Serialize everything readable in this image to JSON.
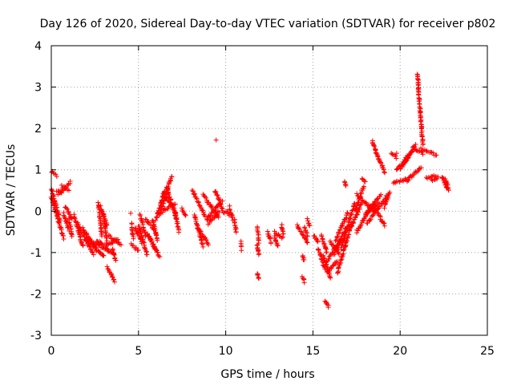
{
  "chart_data": {
    "type": "scatter",
    "title": "Day 126 of 2020, Sidereal Day-to-day VTEC variation (SDTVAR) for receiver p802",
    "xlabel": "GPS time / hours",
    "ylabel": "SDTVAR / TECUs",
    "xlim": [
      0,
      25
    ],
    "ylim": [
      -3,
      4
    ],
    "xticks": [
      "0",
      "5",
      "10",
      "15",
      "20",
      "25"
    ],
    "yticks": [
      "-3",
      "-2",
      "-1",
      "0",
      "1",
      "2",
      "3",
      "4"
    ],
    "grid": true,
    "marker": "+",
    "series_color": "#ff0000",
    "segments": [
      [
        0.0,
        0.95,
        0.3,
        0.85
      ],
      [
        0.0,
        0.55,
        0.5,
        -0.2
      ],
      [
        0.0,
        0.35,
        0.7,
        -0.65
      ],
      [
        0.3,
        0.5,
        0.6,
        0.45
      ],
      [
        0.4,
        0.4,
        1.1,
        0.7
      ],
      [
        0.6,
        0.6,
        1.0,
        0.5
      ],
      [
        0.7,
        -0.05,
        1.0,
        -0.45
      ],
      [
        0.8,
        0.1,
        1.2,
        -0.2
      ],
      [
        1.0,
        -0.2,
        1.2,
        -0.6
      ],
      [
        1.3,
        -0.1,
        1.8,
        -0.85
      ],
      [
        1.5,
        -0.3,
        2.1,
        -0.8
      ],
      [
        1.8,
        -0.4,
        2.6,
        -0.95
      ],
      [
        2.0,
        -0.65,
        2.4,
        -1.05
      ],
      [
        2.2,
        -0.7,
        3.0,
        -1.1
      ],
      [
        2.4,
        -0.75,
        3.3,
        -0.95
      ],
      [
        2.6,
        -0.7,
        3.6,
        -1.05
      ],
      [
        2.7,
        0.2,
        2.9,
        -0.6
      ],
      [
        2.8,
        0.1,
        3.2,
        -0.35
      ],
      [
        3.0,
        -0.1,
        3.2,
        -0.8
      ],
      [
        3.2,
        -0.8,
        3.8,
        -0.7
      ],
      [
        3.3,
        -0.6,
        4.0,
        -0.8
      ],
      [
        3.2,
        -1.35,
        3.65,
        -1.7
      ],
      [
        3.5,
        -0.9,
        3.7,
        -1.2
      ],
      [
        4.6,
        -0.3,
        4.7,
        -0.65
      ],
      [
        4.6,
        -0.8,
        5.0,
        -0.95
      ],
      [
        4.8,
        -0.4,
        5.2,
        -0.75
      ],
      [
        5.0,
        -0.35,
        5.5,
        -1.05
      ],
      [
        5.1,
        -0.1,
        5.4,
        -0.6
      ],
      [
        5.4,
        -0.2,
        5.9,
        -0.45
      ],
      [
        5.5,
        -0.55,
        6.0,
        -0.95
      ],
      [
        5.6,
        -0.6,
        6.2,
        -1.1
      ],
      [
        5.8,
        -0.2,
        6.1,
        -0.7
      ],
      [
        6.0,
        -0.2,
        6.5,
        0.5
      ],
      [
        6.2,
        -0.1,
        6.9,
        0.85
      ],
      [
        6.4,
        0.0,
        7.1,
        0.2
      ],
      [
        6.4,
        0.4,
        7.0,
        0.1
      ],
      [
        6.6,
        0.6,
        7.2,
        -0.2
      ],
      [
        7.1,
        0.0,
        7.3,
        -0.5
      ],
      [
        7.5,
        0.05,
        7.7,
        -0.1
      ],
      [
        8.1,
        0.5,
        8.8,
        -0.1
      ],
      [
        8.2,
        -0.1,
        8.7,
        -0.85
      ],
      [
        8.4,
        -0.4,
        9.0,
        -0.8
      ],
      [
        8.7,
        0.4,
        9.6,
        -0.15
      ],
      [
        8.9,
        -0.2,
        9.8,
        0.25
      ],
      [
        9.0,
        -0.3,
        9.6,
        0.0
      ],
      [
        9.4,
        0.5,
        9.8,
        0.05
      ],
      [
        9.8,
        0.0,
        10.4,
        -0.1
      ],
      [
        10.2,
        0.1,
        10.4,
        -0.2
      ],
      [
        10.5,
        -0.2,
        10.6,
        -0.5
      ],
      [
        10.9,
        -0.75,
        10.9,
        -0.85
      ],
      [
        11.8,
        -0.4,
        11.9,
        -0.75
      ],
      [
        11.8,
        -1.5,
        11.9,
        -1.65
      ],
      [
        11.8,
        -0.8,
        11.9,
        -1.05
      ],
      [
        12.4,
        -0.5,
        12.6,
        -0.75
      ],
      [
        12.8,
        -0.5,
        13.2,
        -0.65
      ],
      [
        12.8,
        -0.6,
        13.0,
        -0.85
      ],
      [
        13.2,
        -0.35,
        13.3,
        -0.6
      ],
      [
        14.1,
        -0.35,
        14.2,
        -0.45
      ],
      [
        14.3,
        -0.5,
        14.7,
        -0.75
      ],
      [
        14.5,
        -0.4,
        14.7,
        -0.6
      ],
      [
        14.4,
        -1.1,
        14.5,
        -1.2
      ],
      [
        14.4,
        -1.6,
        14.5,
        -1.7
      ],
      [
        14.7,
        -0.2,
        14.8,
        -0.35
      ],
      [
        15.1,
        -0.6,
        15.3,
        -0.75
      ],
      [
        15.3,
        -0.9,
        15.7,
        -1.4
      ],
      [
        15.5,
        -0.6,
        15.8,
        -1.0
      ],
      [
        15.6,
        -1.1,
        16.0,
        -1.6
      ],
      [
        15.7,
        -2.15,
        15.9,
        -2.3
      ],
      [
        15.8,
        -1.2,
        16.6,
        -0.7
      ],
      [
        15.8,
        -1.5,
        16.4,
        -1.2
      ],
      [
        16.0,
        -0.75,
        16.5,
        -1.05
      ],
      [
        16.2,
        -1.05,
        16.9,
        -0.4
      ],
      [
        16.3,
        -0.7,
        17.0,
        -0.05
      ],
      [
        16.4,
        -1.5,
        17.2,
        -0.3
      ],
      [
        16.6,
        -0.9,
        17.4,
        0.2
      ],
      [
        16.8,
        0.7,
        16.9,
        0.6
      ],
      [
        17.2,
        -0.4,
        17.8,
        0.2
      ],
      [
        17.4,
        0.0,
        17.9,
        0.6
      ],
      [
        17.5,
        -0.5,
        18.3,
        0.1
      ],
      [
        17.5,
        0.4,
        18.5,
        0.0
      ],
      [
        17.8,
        0.8,
        18.0,
        0.7
      ],
      [
        18.0,
        -0.1,
        18.9,
        0.4
      ],
      [
        18.1,
        -0.3,
        19.3,
        0.4
      ],
      [
        18.2,
        0.0,
        18.8,
        0.2
      ],
      [
        18.4,
        0.2,
        19.1,
        -0.35
      ],
      [
        18.4,
        1.7,
        18.8,
        1.2
      ],
      [
        18.8,
        1.25,
        19.1,
        0.95
      ],
      [
        19.1,
        0.1,
        19.4,
        0.45
      ],
      [
        19.5,
        1.4,
        19.8,
        1.3
      ],
      [
        19.6,
        0.7,
        20.5,
        0.8
      ],
      [
        19.8,
        1.0,
        20.5,
        1.3
      ],
      [
        20.0,
        1.0,
        20.7,
        1.45
      ],
      [
        20.2,
        1.2,
        20.9,
        1.6
      ],
      [
        20.4,
        0.75,
        21.2,
        1.05
      ],
      [
        20.7,
        1.55,
        21.3,
        1.4
      ],
      [
        21.0,
        3.3,
        21.1,
        2.7
      ],
      [
        21.1,
        2.7,
        21.3,
        1.6
      ],
      [
        21.2,
        1.5,
        22.1,
        1.35
      ],
      [
        21.5,
        0.8,
        22.1,
        0.85
      ],
      [
        21.8,
        0.75,
        22.2,
        0.8
      ],
      [
        22.4,
        0.85,
        22.7,
        0.55
      ],
      [
        22.6,
        0.75,
        22.8,
        0.5
      ]
    ],
    "isolated_points": [
      [
        9.45,
        1.72
      ],
      [
        4.55,
        -0.05
      ],
      [
        8.95,
        -0.2
      ],
      [
        10.9,
        -0.95
      ],
      [
        15.05,
        -0.6
      ],
      [
        19.8,
        1.4
      ]
    ]
  }
}
